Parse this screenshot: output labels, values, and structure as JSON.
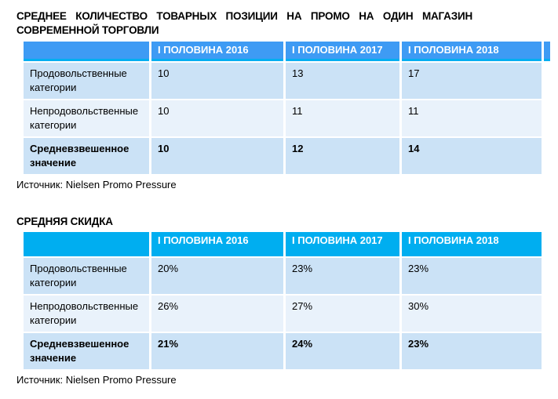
{
  "colors": {
    "header_azure": "#3E9BF4",
    "header_cyan": "#00AEF0",
    "row_blue": "#CBE2F6",
    "row_light_blue": "#E9F2FB"
  },
  "section1": {
    "title_line1": "СРЕДНЕЕ КОЛИЧЕСТВО ТОВАРНЫХ ПОЗИЦИИ НА ПРОМО НА ОДИН МАГАЗИН",
    "title_line2": "СОВРЕМЕННОЙ ТОРГОВЛИ",
    "table": {
      "columns": [
        "",
        "I ПОЛОВИНА 2016",
        "I ПОЛОВИНА 2017",
        "I ПОЛОВИНА 2018"
      ],
      "rows": [
        {
          "label": "Продовольственные категории",
          "values": [
            "10",
            "13",
            "17"
          ]
        },
        {
          "label": "Непродовольственные категории",
          "values": [
            "10",
            "11",
            "11"
          ]
        },
        {
          "label": "Средневзвешенное значение",
          "values": [
            "10",
            "12",
            "14"
          ]
        }
      ]
    },
    "source": "Источник: Nielsen Promo Pressure"
  },
  "section2": {
    "title": "СРЕДНЯЯ СКИДКА",
    "table": {
      "columns": [
        "",
        "I ПОЛОВИНА 2016",
        "I ПОЛОВИНА 2017",
        "I ПОЛОВИНА 2018"
      ],
      "rows": [
        {
          "label": "Продовольственные категории",
          "values": [
            "20%",
            "23%",
            "23%"
          ]
        },
        {
          "label": "Непродовольственные категории",
          "values": [
            "26%",
            "27%",
            "30%"
          ]
        },
        {
          "label": "Средневзвешенное значение",
          "values": [
            "21%",
            "24%",
            "23%"
          ]
        }
      ]
    },
    "source": "Источник: Nielsen Promo Pressure"
  }
}
